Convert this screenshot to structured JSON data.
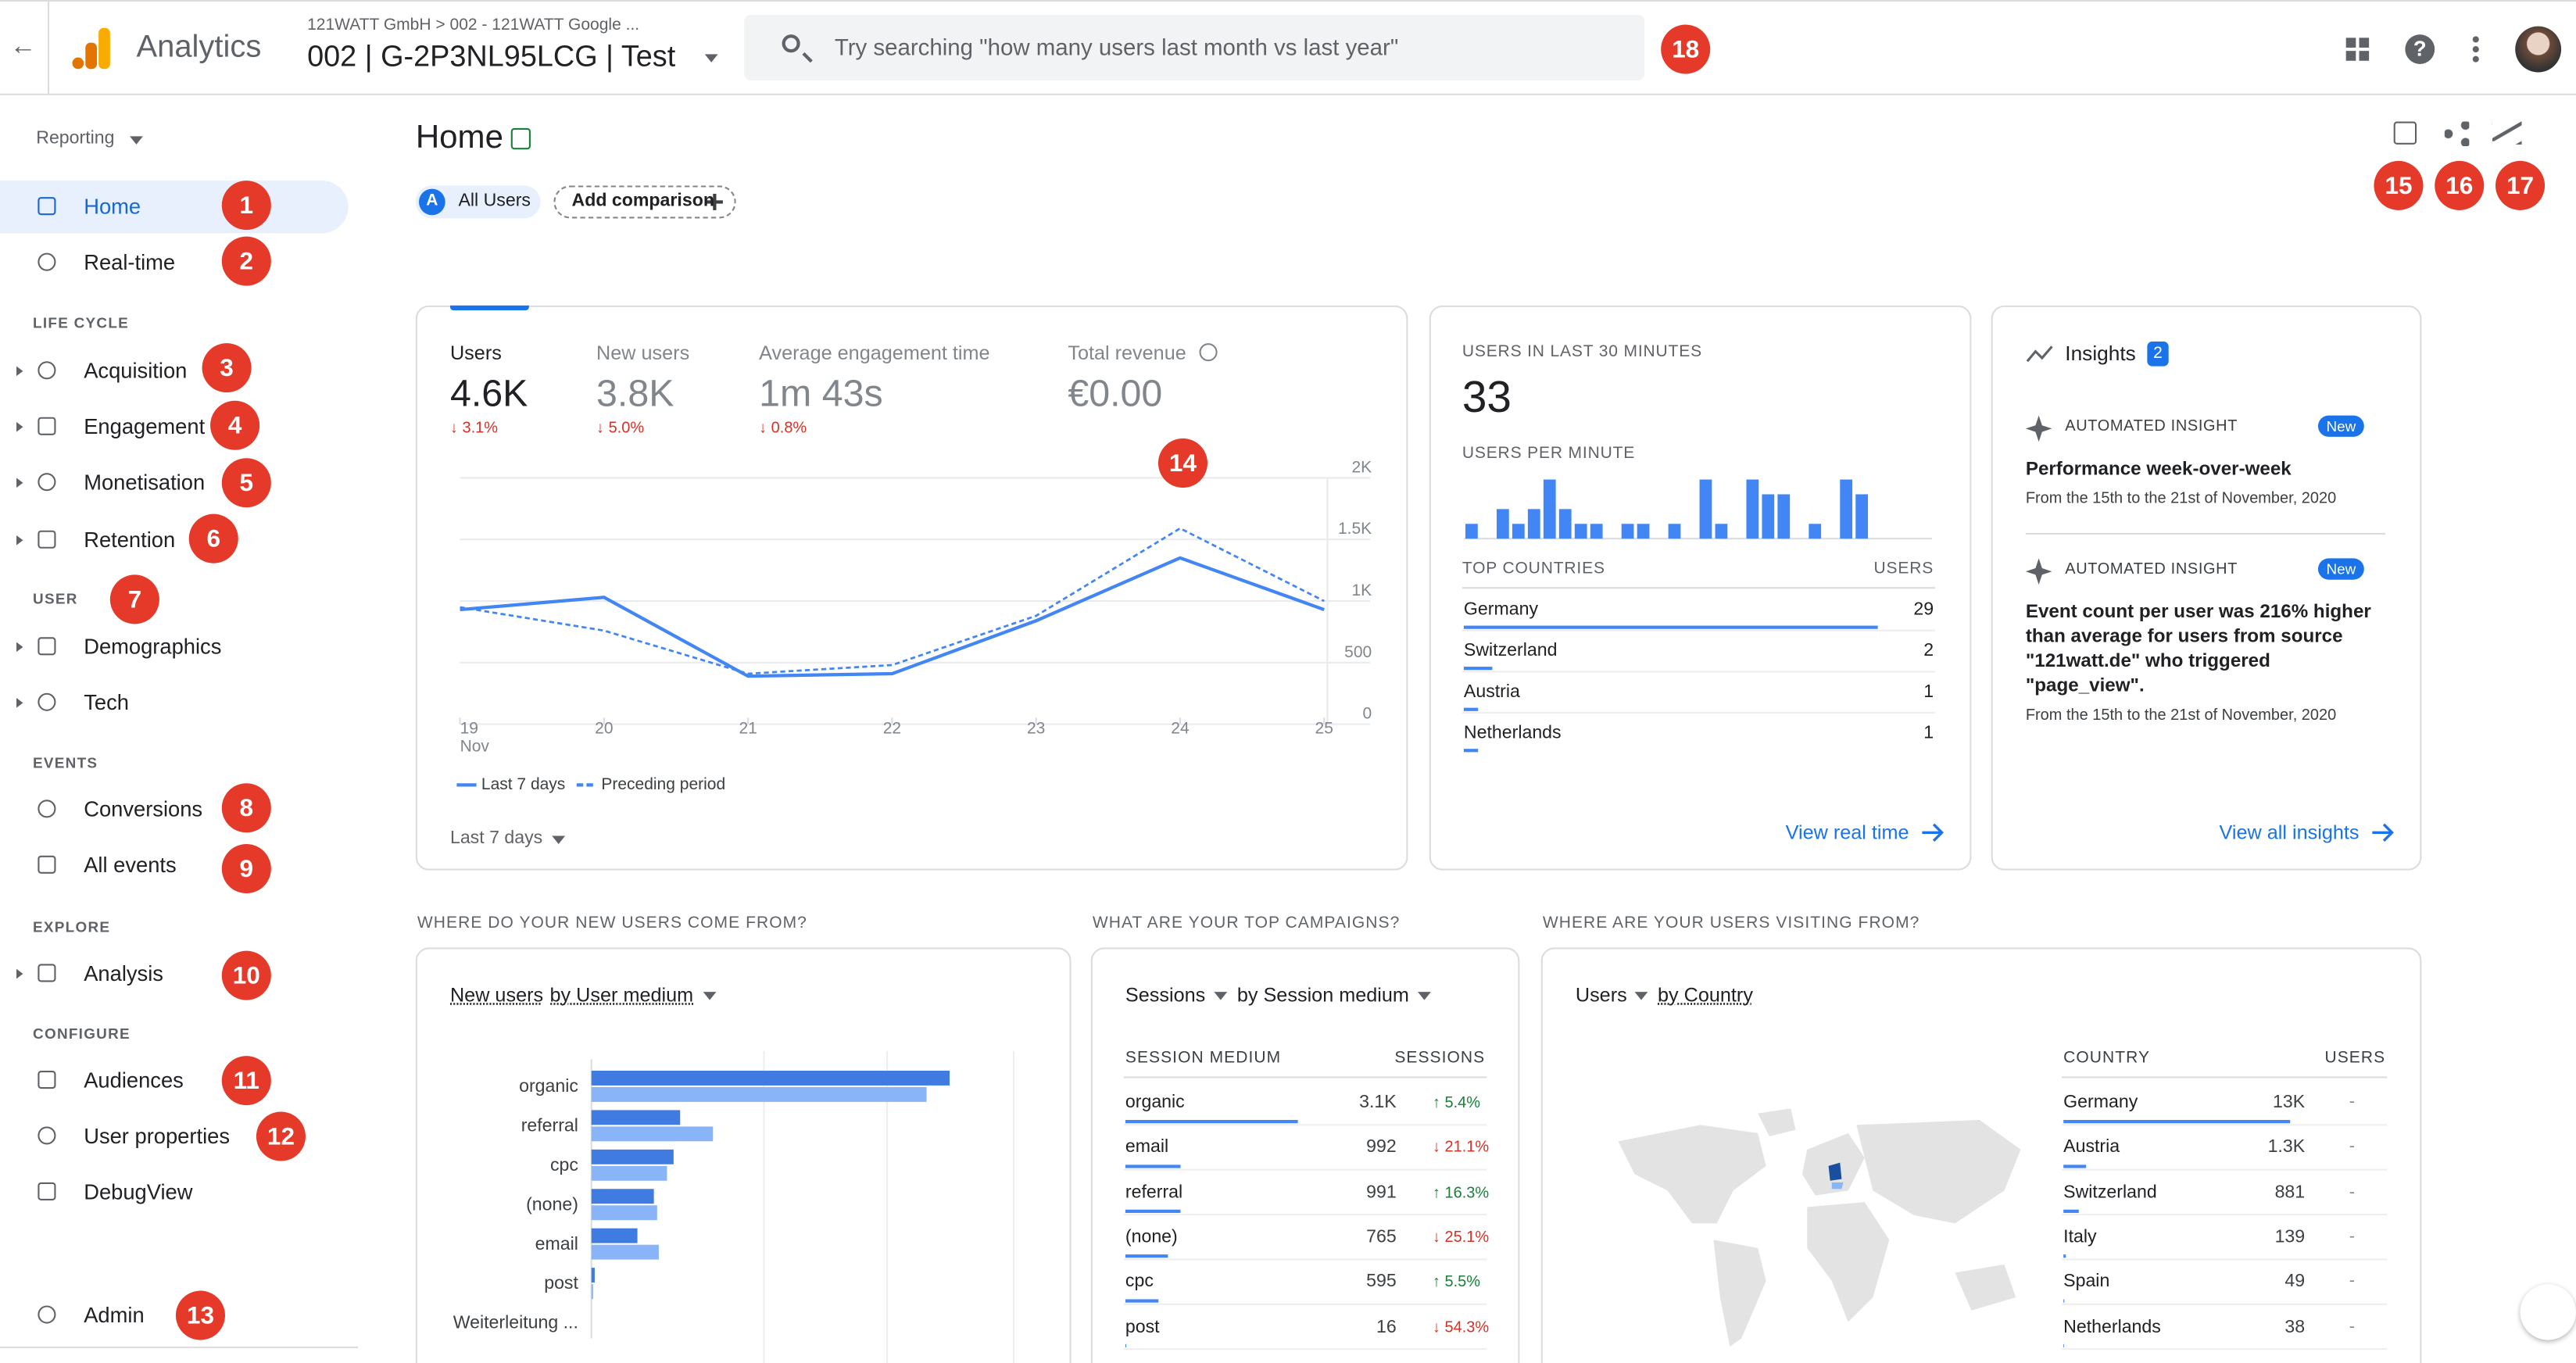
{
  "header": {
    "product": "Analytics",
    "account_path": "121WATT GmbH > 002 - 121WATT Google ...",
    "property": "002 | G-2P3NL95LCG | Test",
    "search_placeholder": "Try searching \"how many users last month vs last year\""
  },
  "nav": {
    "reporting": "Reporting",
    "entries": [
      {
        "label": "Home"
      },
      {
        "label": "Real-time"
      },
      {
        "section": "LIFE CYCLE"
      },
      {
        "label": "Acquisition"
      },
      {
        "label": "Engagement"
      },
      {
        "label": "Monetisation"
      },
      {
        "label": "Retention"
      },
      {
        "section": "USER"
      },
      {
        "label": "Demographics"
      },
      {
        "label": "Tech"
      },
      {
        "section": "EVENTS"
      },
      {
        "label": "Conversions"
      },
      {
        "label": "All events"
      },
      {
        "section": "EXPLORE"
      },
      {
        "label": "Analysis"
      },
      {
        "section": "CONFIGURE"
      },
      {
        "label": "Audiences"
      },
      {
        "label": "User properties"
      },
      {
        "label": "DebugView"
      },
      {
        "label": "Admin"
      }
    ]
  },
  "annotations": [
    1,
    2,
    3,
    4,
    5,
    6,
    7,
    8,
    9,
    10,
    11,
    12,
    13,
    14,
    15,
    16,
    17,
    18
  ],
  "page": {
    "title": "Home",
    "segment_letter": "A",
    "segment": "All Users",
    "add_comparison": "Add comparison"
  },
  "overview": {
    "metrics": [
      {
        "label": "Users",
        "value": "4.6K",
        "change": "↓ 3.1%"
      },
      {
        "label": "New users",
        "value": "3.8K",
        "change": "↓ 5.0%"
      },
      {
        "label": "Average engagement time",
        "value": "1m 43s",
        "change": "↓ 0.8%"
      },
      {
        "label": "Total revenue",
        "value": "€0.00"
      }
    ],
    "chart_data": {
      "type": "line",
      "categories": [
        "19",
        "20",
        "21",
        "22",
        "23",
        "24",
        "25"
      ],
      "x_sublabel": "Nov",
      "series": [
        {
          "name": "Last 7 days",
          "color": "#4285f4",
          "values": [
            930,
            1030,
            390,
            410,
            840,
            1350,
            930
          ]
        },
        {
          "name": "Preceding period",
          "color": "#4285f4",
          "dashed": true,
          "values": [
            950,
            760,
            410,
            480,
            880,
            1590,
            1000
          ]
        }
      ],
      "ylim": [
        0,
        2000
      ],
      "yticks": [
        0,
        500,
        {
          "value": 1000,
          "label": "1K"
        },
        {
          "value": 1500,
          "label": "1.5K"
        },
        {
          "value": 2000,
          "label": "2K"
        }
      ],
      "grid": true
    },
    "date_range": "Last 7 days"
  },
  "realtime": {
    "title": "USERS IN LAST 30 MINUTES",
    "users": 33,
    "per_minute_title": "USERS PER MINUTE",
    "chart_data": {
      "type": "bar",
      "color": "#4285f4",
      "ylim": [
        0,
        4
      ],
      "values": [
        1,
        0,
        2,
        1,
        2,
        4,
        2,
        1,
        1,
        0,
        1,
        1,
        0,
        1,
        0,
        4,
        1,
        0,
        4,
        3,
        3,
        0,
        1,
        0,
        4,
        3,
        0,
        0,
        0,
        0
      ]
    },
    "countries_header": "TOP COUNTRIES",
    "users_header": "USERS",
    "countries": [
      {
        "name": "Germany",
        "users": 29
      },
      {
        "name": "Switzerland",
        "users": 2
      },
      {
        "name": "Austria",
        "users": 1
      },
      {
        "name": "Netherlands",
        "users": 1
      }
    ],
    "link": "View real time"
  },
  "insights": {
    "title": "Insights",
    "count": 2,
    "items": [
      {
        "kind": "AUTOMATED INSIGHT",
        "badge": "New",
        "headline": "Performance week-over-week",
        "period": "From the 15th to the 21st of November, 2020"
      },
      {
        "kind": "AUTOMATED INSIGHT",
        "badge": "New",
        "headline": "Event count per user was 216% higher than average for users from source \"121watt.de\" who triggered \"page_view\".",
        "period": "From the 15th to the 21st of November, 2020"
      }
    ],
    "link": "View all insights"
  },
  "new_users": {
    "heading": "WHERE DO YOUR NEW USERS COME FROM?",
    "metric": "New users",
    "dimension": "by User medium",
    "chart_data": {
      "type": "barh",
      "categories": [
        "organic",
        "referral",
        "cpc",
        "(none)",
        "email",
        "post",
        "Weiterleitung ..."
      ],
      "series": [
        {
          "color": "#3f7be0",
          "values": [
            218,
            54,
            50,
            38,
            28,
            2,
            0
          ]
        },
        {
          "color": "#8ab4f8",
          "values": [
            204,
            74,
            46,
            40,
            41,
            1,
            0
          ]
        }
      ],
      "xlim": [
        0,
        260
      ]
    }
  },
  "campaigns": {
    "heading": "WHAT ARE YOUR TOP CAMPAIGNS?",
    "metric": "Sessions",
    "dimension": "by Session medium",
    "columns": [
      "SESSION MEDIUM",
      "SESSIONS"
    ],
    "rows": [
      {
        "medium": "organic",
        "sessions": {
          "value": 3100,
          "label": "3.1K"
        },
        "change": "↑ 5.4%"
      },
      {
        "medium": "email",
        "sessions": 992,
        "change": "↓ 21.1%"
      },
      {
        "medium": "referral",
        "sessions": 991,
        "change": "↑ 16.3%"
      },
      {
        "medium": "(none)",
        "sessions": 765,
        "change": "↓ 25.1%"
      },
      {
        "medium": "cpc",
        "sessions": 595,
        "change": "↑ 5.5%"
      },
      {
        "medium": "post",
        "sessions": 16,
        "change": "↓ 54.3%"
      }
    ]
  },
  "countries": {
    "heading": "WHERE ARE YOUR USERS VISITING FROM?",
    "metric": "Users",
    "dimension": "by Country",
    "columns": [
      "COUNTRY",
      "USERS"
    ],
    "rows": [
      {
        "country": "Germany",
        "users": {
          "value": 13000,
          "label": "13K"
        },
        "change": "-"
      },
      {
        "country": "Austria",
        "users": {
          "value": 1300,
          "label": "1.3K"
        },
        "change": "-"
      },
      {
        "country": "Switzerland",
        "users": 881,
        "change": "-"
      },
      {
        "country": "Italy",
        "users": 139,
        "change": "-"
      },
      {
        "country": "Spain",
        "users": 49,
        "change": "-"
      },
      {
        "country": "Netherlands",
        "users": 38,
        "change": "-"
      }
    ]
  }
}
